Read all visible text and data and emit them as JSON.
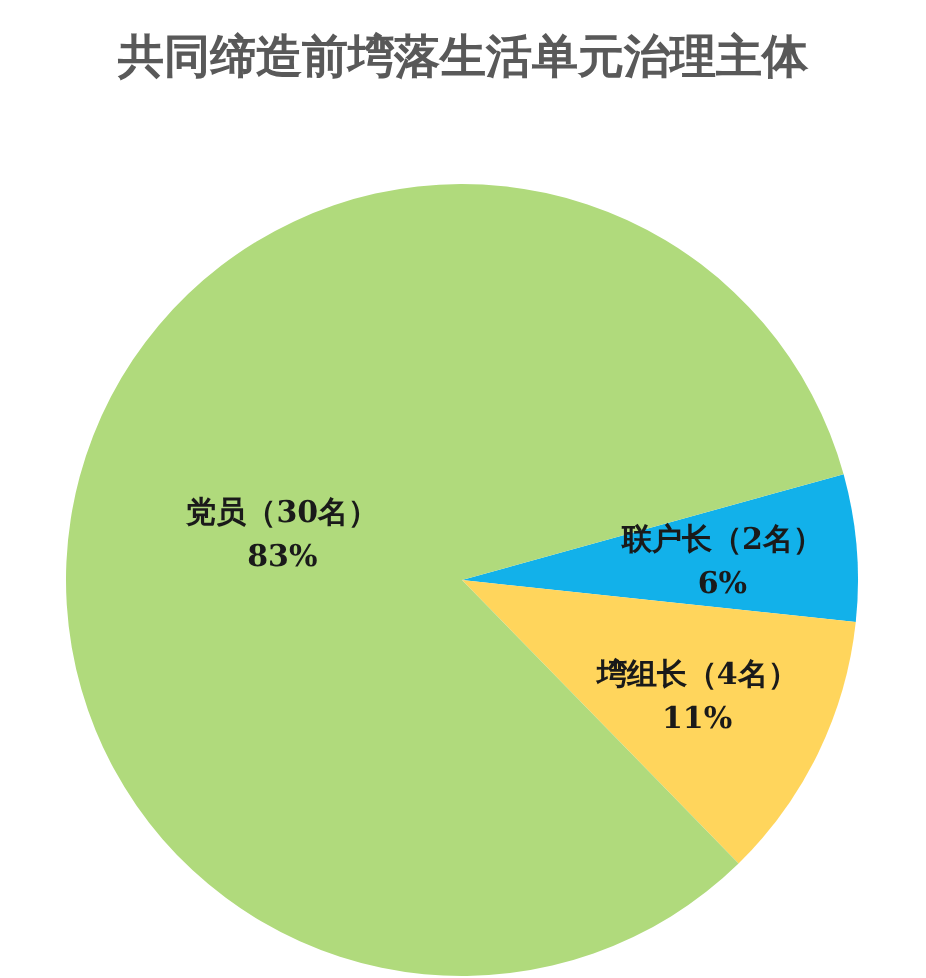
{
  "chart_data": {
    "type": "pie",
    "title": "共同缔造前塆落生活单元治理主体",
    "categories": [
      "联户长（2名）",
      "塆组长（4名）",
      "党员（30名）"
    ],
    "values": [
      6,
      11,
      83
    ],
    "value_labels": [
      "6%",
      "11%",
      "83%"
    ],
    "colors": [
      "#12b1ea",
      "#ffd55c",
      "#b0da7c"
    ],
    "legend": false
  }
}
